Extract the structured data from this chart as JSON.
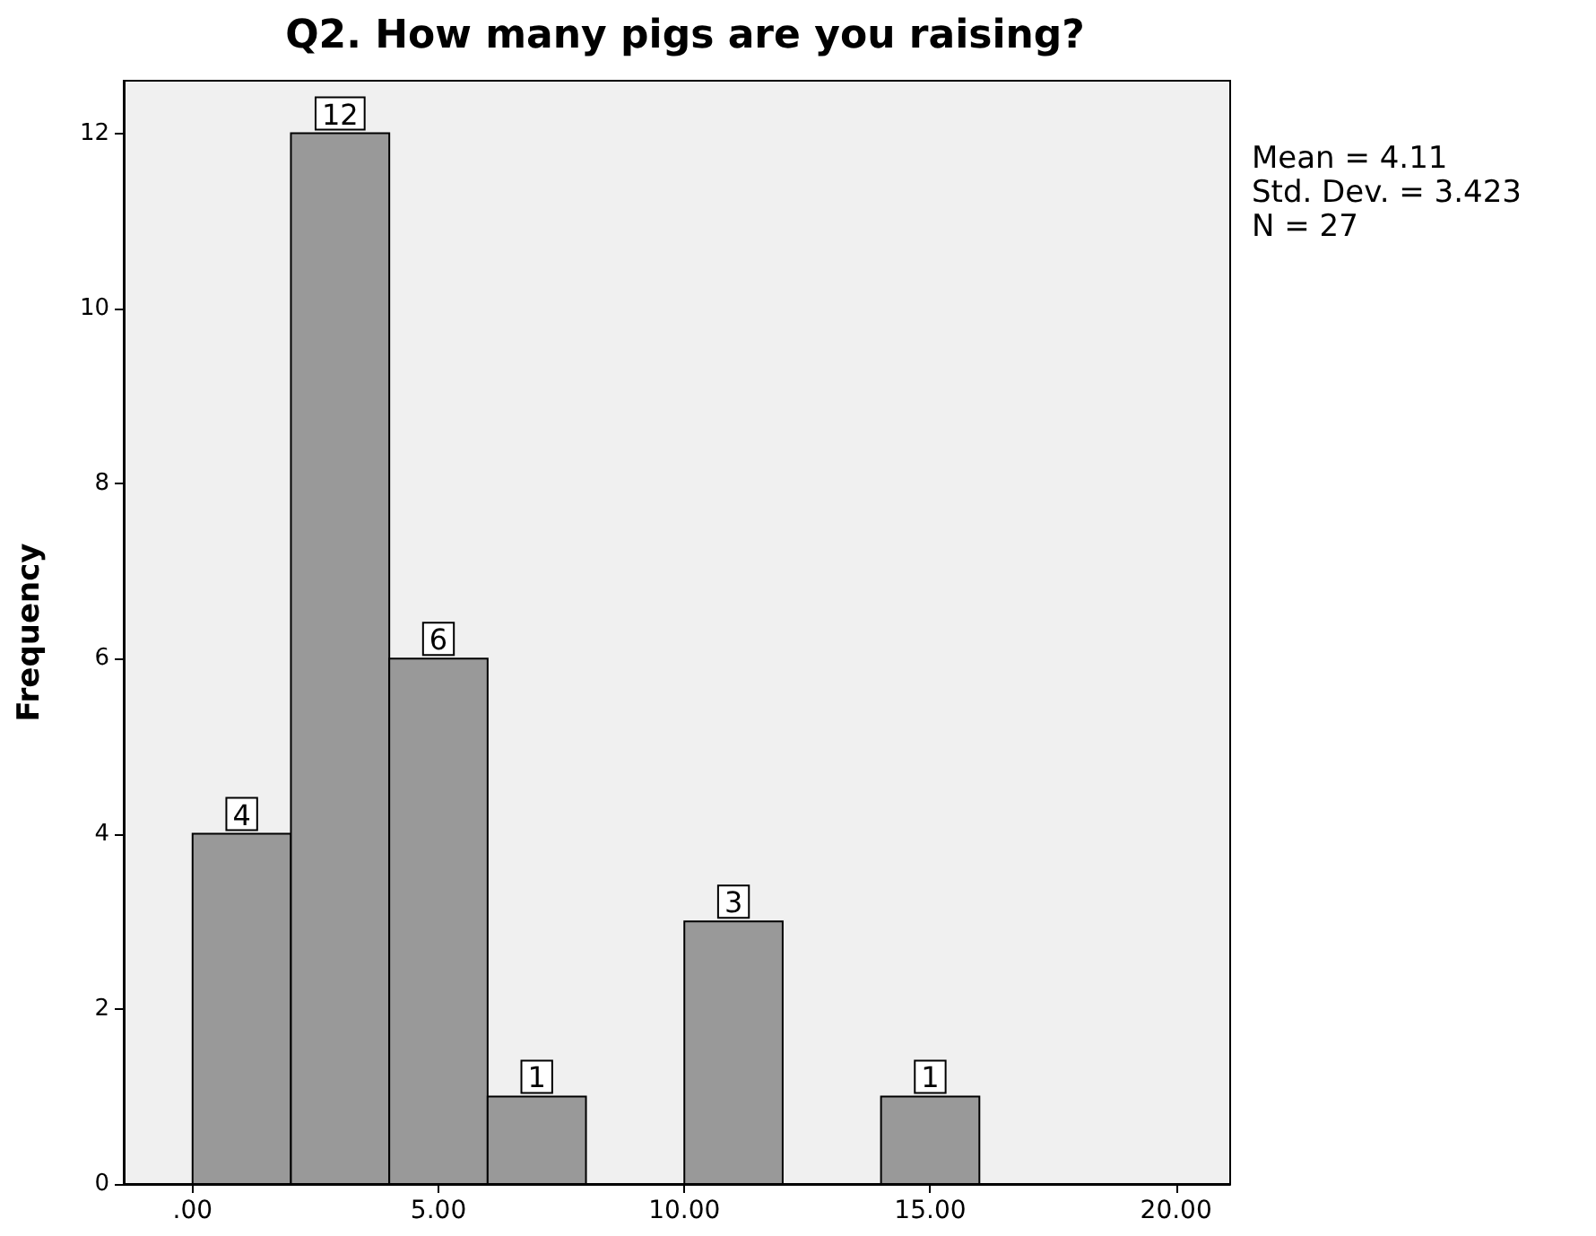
{
  "chart_data": {
    "type": "histogram",
    "title": "Q2. How many pigs are you raising?",
    "ylabel": "Frequency",
    "bins": [
      0,
      2,
      4,
      6,
      8,
      10,
      12,
      14,
      16
    ],
    "values": [
      4,
      12,
      6,
      1,
      0,
      3,
      0,
      1
    ],
    "value_labels": [
      "4",
      "12",
      "6",
      "1",
      null,
      "3",
      null,
      "1"
    ],
    "color": "#999999",
    "xlim": [
      -1.4,
      21.1
    ],
    "xticks": [
      {
        "value": 0,
        "label": ".00"
      },
      {
        "value": 5,
        "label": "5.00"
      },
      {
        "value": 10,
        "label": "10.00"
      },
      {
        "value": 15,
        "label": "15.00"
      },
      {
        "value": 20,
        "label": "20.00"
      }
    ],
    "ylim": [
      0,
      12.6
    ],
    "yticks": [
      0,
      2,
      4,
      6,
      8,
      10,
      12
    ],
    "grid": false,
    "annotations": [
      "Mean = 4.11",
      "Std. Dev. = 3.423",
      "N = 27"
    ]
  }
}
